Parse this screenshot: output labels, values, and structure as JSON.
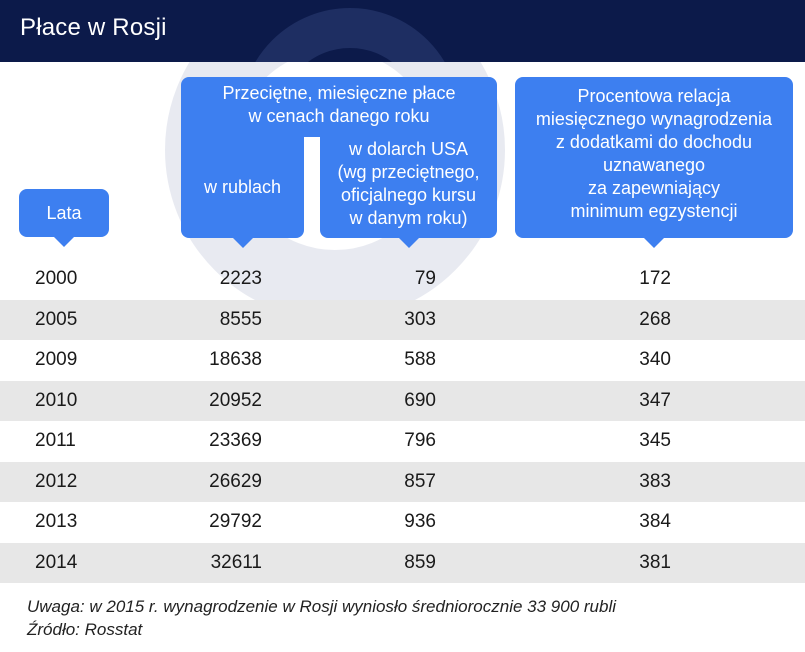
{
  "title": "Płace w Rosji",
  "headers": {
    "lata": "Lata",
    "main": [
      "Przeciętne, miesięczne płace",
      "w cenach  danego roku"
    ],
    "rub": "w rublach",
    "usd": [
      "w dolarch USA",
      "(wg przeciętnego,",
      "oficjalnego kursu",
      "w danym roku)"
    ],
    "pct": [
      "Procentowa relacja",
      "miesięcznego wynagrodzenia",
      "z dodatkami do dochodu",
      "uznawanego",
      "za zapewniający",
      "minimum egzystencji"
    ]
  },
  "rows": [
    {
      "year": "2000",
      "rub": "2223",
      "usd": "79",
      "pct": "172"
    },
    {
      "year": "2005",
      "rub": "8555",
      "usd": "303",
      "pct": "268"
    },
    {
      "year": "2009",
      "rub": "18638",
      "usd": "588",
      "pct": "340"
    },
    {
      "year": "2010",
      "rub": "20952",
      "usd": "690",
      "pct": "347"
    },
    {
      "year": "2011",
      "rub": "23369",
      "usd": "796",
      "pct": "345"
    },
    {
      "year": "2012",
      "rub": "26629",
      "usd": "857",
      "pct": "383"
    },
    {
      "year": "2013",
      "rub": "29792",
      "usd": "936",
      "pct": "384"
    },
    {
      "year": "2014",
      "rub": "32611",
      "usd": "859",
      "pct": "381"
    }
  ],
  "footer": {
    "note": "Uwaga: w 2015 r. wynagrodzenie w Rosji wyniosło średniorocznie 33 900 rubli",
    "source": "Źródło: Rosstat"
  },
  "colors": {
    "header_bg": "#0c1a4a",
    "bubble": "#3d7ff0",
    "row_alt": "#e7e7e7"
  }
}
